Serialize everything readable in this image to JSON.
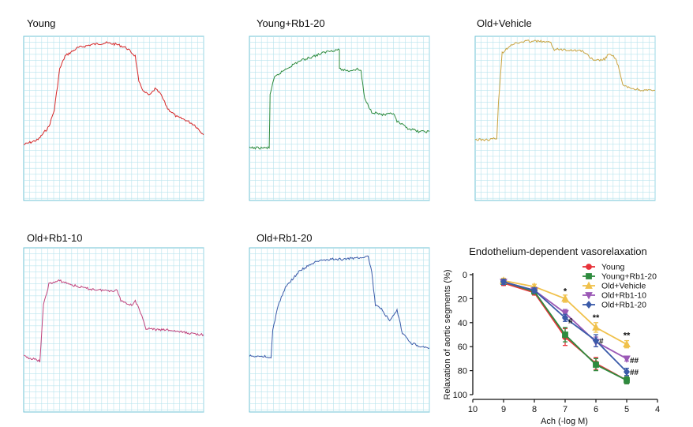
{
  "panels": [
    {
      "title": "Young",
      "color": "#d62728",
      "trace": [
        [
          0,
          0.66
        ],
        [
          0.08,
          0.63
        ],
        [
          0.14,
          0.55
        ],
        [
          0.17,
          0.45
        ],
        [
          0.2,
          0.2
        ],
        [
          0.23,
          0.12
        ],
        [
          0.3,
          0.07
        ],
        [
          0.38,
          0.05
        ],
        [
          0.46,
          0.04
        ],
        [
          0.52,
          0.05
        ],
        [
          0.57,
          0.07
        ],
        [
          0.62,
          0.12
        ],
        [
          0.64,
          0.28
        ],
        [
          0.67,
          0.34
        ],
        [
          0.7,
          0.36
        ],
        [
          0.73,
          0.32
        ],
        [
          0.76,
          0.35
        ],
        [
          0.8,
          0.44
        ],
        [
          0.85,
          0.49
        ],
        [
          0.9,
          0.51
        ],
        [
          0.95,
          0.54
        ],
        [
          1,
          0.6
        ]
      ]
    },
    {
      "title": "Young+Rb1-20",
      "color": "#2e8b3e",
      "trace": [
        [
          0,
          0.68
        ],
        [
          0.06,
          0.68
        ],
        [
          0.11,
          0.68
        ],
        [
          0.115,
          0.35
        ],
        [
          0.14,
          0.25
        ],
        [
          0.2,
          0.2
        ],
        [
          0.28,
          0.15
        ],
        [
          0.36,
          0.12
        ],
        [
          0.44,
          0.09
        ],
        [
          0.5,
          0.08
        ],
        [
          0.5,
          0.2
        ],
        [
          0.55,
          0.21
        ],
        [
          0.6,
          0.2
        ],
        [
          0.62,
          0.21
        ],
        [
          0.64,
          0.38
        ],
        [
          0.68,
          0.46
        ],
        [
          0.75,
          0.48
        ],
        [
          0.8,
          0.47
        ],
        [
          0.82,
          0.52
        ],
        [
          0.88,
          0.56
        ],
        [
          0.94,
          0.58
        ],
        [
          1,
          0.58
        ]
      ]
    },
    {
      "title": "Old+Vehicle",
      "color": "#c9a441",
      "trace": [
        [
          0,
          0.63
        ],
        [
          0.08,
          0.63
        ],
        [
          0.12,
          0.62
        ],
        [
          0.13,
          0.4
        ],
        [
          0.15,
          0.1
        ],
        [
          0.2,
          0.05
        ],
        [
          0.28,
          0.03
        ],
        [
          0.36,
          0.03
        ],
        [
          0.42,
          0.04
        ],
        [
          0.44,
          0.08
        ],
        [
          0.5,
          0.08
        ],
        [
          0.6,
          0.09
        ],
        [
          0.63,
          0.12
        ],
        [
          0.66,
          0.15
        ],
        [
          0.72,
          0.14
        ],
        [
          0.74,
          0.11
        ],
        [
          0.78,
          0.13
        ],
        [
          0.8,
          0.2
        ],
        [
          0.82,
          0.3
        ],
        [
          0.88,
          0.32
        ],
        [
          0.94,
          0.33
        ],
        [
          1,
          0.33
        ]
      ]
    },
    {
      "title": "Old+Rb1-10",
      "color": "#c1447d",
      "trace": [
        [
          0,
          0.66
        ],
        [
          0.06,
          0.68
        ],
        [
          0.09,
          0.69
        ],
        [
          0.11,
          0.35
        ],
        [
          0.14,
          0.22
        ],
        [
          0.2,
          0.2
        ],
        [
          0.28,
          0.23
        ],
        [
          0.36,
          0.25
        ],
        [
          0.46,
          0.26
        ],
        [
          0.52,
          0.26
        ],
        [
          0.54,
          0.32
        ],
        [
          0.6,
          0.35
        ],
        [
          0.62,
          0.32
        ],
        [
          0.65,
          0.4
        ],
        [
          0.68,
          0.49
        ],
        [
          0.74,
          0.5
        ],
        [
          0.8,
          0.5
        ],
        [
          0.86,
          0.51
        ],
        [
          0.92,
          0.52
        ],
        [
          1,
          0.53
        ]
      ]
    },
    {
      "title": "Old+Rb1-20",
      "color": "#3b5ba9",
      "trace": [
        [
          0,
          0.66
        ],
        [
          0.08,
          0.66
        ],
        [
          0.12,
          0.67
        ],
        [
          0.13,
          0.5
        ],
        [
          0.16,
          0.35
        ],
        [
          0.2,
          0.24
        ],
        [
          0.28,
          0.14
        ],
        [
          0.36,
          0.09
        ],
        [
          0.44,
          0.07
        ],
        [
          0.52,
          0.07
        ],
        [
          0.6,
          0.06
        ],
        [
          0.66,
          0.05
        ],
        [
          0.68,
          0.15
        ],
        [
          0.7,
          0.35
        ],
        [
          0.74,
          0.38
        ],
        [
          0.78,
          0.45
        ],
        [
          0.82,
          0.38
        ],
        [
          0.85,
          0.52
        ],
        [
          0.9,
          0.58
        ],
        [
          0.95,
          0.6
        ],
        [
          1,
          0.61
        ]
      ]
    }
  ],
  "chart_data": {
    "type": "line",
    "title": "Endothelium-dependent vasorelaxation",
    "xlabel": "Ach (-log M)",
    "ylabel": "Relaxation of aortic segments (%)",
    "xlim": [
      10,
      4
    ],
    "ylim": [
      0,
      100
    ],
    "y_inverted": true,
    "x_ticks": [
      "10",
      "9",
      "8",
      "7",
      "6",
      "5",
      "4"
    ],
    "y_ticks": [
      "0",
      "20",
      "40",
      "60",
      "80",
      "100"
    ],
    "x": [
      9,
      8,
      7,
      6,
      5
    ],
    "legend_position": "top-right",
    "series": [
      {
        "name": "Young",
        "color": "#e8333a",
        "marker": "circle",
        "values": [
          7,
          15,
          52,
          74,
          88
        ],
        "err": [
          2,
          2,
          7,
          5,
          3
        ]
      },
      {
        "name": "Young+Rb1-20",
        "color": "#2e8b3e",
        "marker": "square",
        "values": [
          6,
          14,
          50,
          75,
          88
        ],
        "err": [
          2,
          2,
          6,
          5,
          3
        ]
      },
      {
        "name": "Old+Vehicle",
        "color": "#f0c14b",
        "marker": "triangle-up",
        "values": [
          5,
          10,
          20,
          44,
          58
        ],
        "err": [
          2,
          2,
          3,
          4,
          3
        ]
      },
      {
        "name": "Old+Rb1-10",
        "color": "#9b59b6",
        "marker": "triangle-down",
        "values": [
          6,
          13,
          32,
          56,
          70
        ],
        "err": [
          2,
          2,
          3,
          4,
          2
        ]
      },
      {
        "name": "Old+Rb1-20",
        "color": "#3b5ba9",
        "marker": "diamond",
        "values": [
          6,
          13,
          36,
          55,
          81
        ],
        "err": [
          2,
          2,
          3,
          5,
          3
        ]
      }
    ],
    "annotations": [
      {
        "text": "*",
        "x": 7,
        "y": 16
      },
      {
        "text": "**",
        "x": 6,
        "y": 38
      },
      {
        "text": "**",
        "x": 5,
        "y": 53
      },
      {
        "text": "#",
        "x": 7,
        "y": 38
      },
      {
        "text": "#",
        "x": 6,
        "y": 55
      },
      {
        "text": "##",
        "x": 5,
        "y": 71
      },
      {
        "text": "##",
        "x": 5,
        "y": 81
      }
    ]
  }
}
